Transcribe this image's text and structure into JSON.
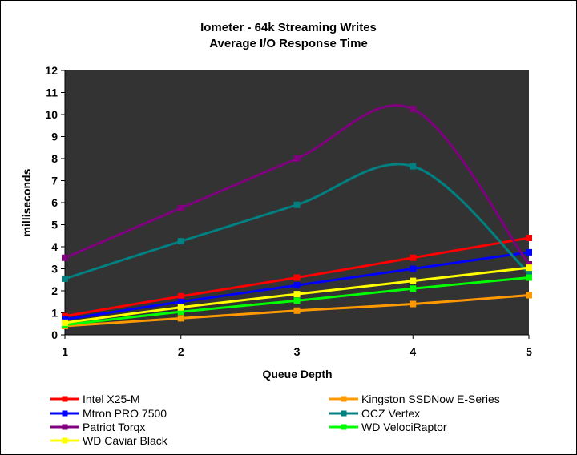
{
  "chart_data": {
    "type": "line",
    "title": "Iometer - 64k Streaming Writes",
    "subtitle": "Average I/O Response Time",
    "xlabel": "Queue Depth",
    "ylabel": "milliseconds",
    "x": [
      1,
      2,
      3,
      4,
      5
    ],
    "xticks": [
      "1",
      "2",
      "3",
      "4",
      "5"
    ],
    "ylim": [
      0,
      12
    ],
    "yticks": [
      "0",
      "1",
      "2",
      "3",
      "4",
      "5",
      "6",
      "7",
      "8",
      "9",
      "10",
      "11",
      "12"
    ],
    "grid": false,
    "plot_background": "#333333",
    "legend_position": "bottom",
    "series": [
      {
        "name": "Intel X25-M",
        "color": "#ff0000",
        "values": [
          0.85,
          1.75,
          2.6,
          3.5,
          4.4
        ]
      },
      {
        "name": "Kingston SSDNow E-Series",
        "color": "#ff9900",
        "values": [
          0.4,
          0.75,
          1.1,
          1.4,
          1.8
        ]
      },
      {
        "name": "Mtron PRO 7500",
        "color": "#0000ff",
        "values": [
          0.7,
          1.5,
          2.25,
          3.0,
          3.75
        ]
      },
      {
        "name": "OCZ Vertex",
        "color": "#008080",
        "values": [
          2.55,
          4.25,
          5.9,
          7.65,
          2.8
        ]
      },
      {
        "name": "Patriot Torqx",
        "color": "#800080",
        "values": [
          3.5,
          5.75,
          8.0,
          10.25,
          3.2
        ]
      },
      {
        "name": "WD VelociRaptor",
        "color": "#00ff00",
        "values": [
          0.45,
          1.05,
          1.55,
          2.1,
          2.6
        ]
      },
      {
        "name": "WD Caviar Black",
        "color": "#ffff00",
        "values": [
          0.55,
          1.25,
          1.85,
          2.45,
          3.05
        ]
      }
    ]
  }
}
